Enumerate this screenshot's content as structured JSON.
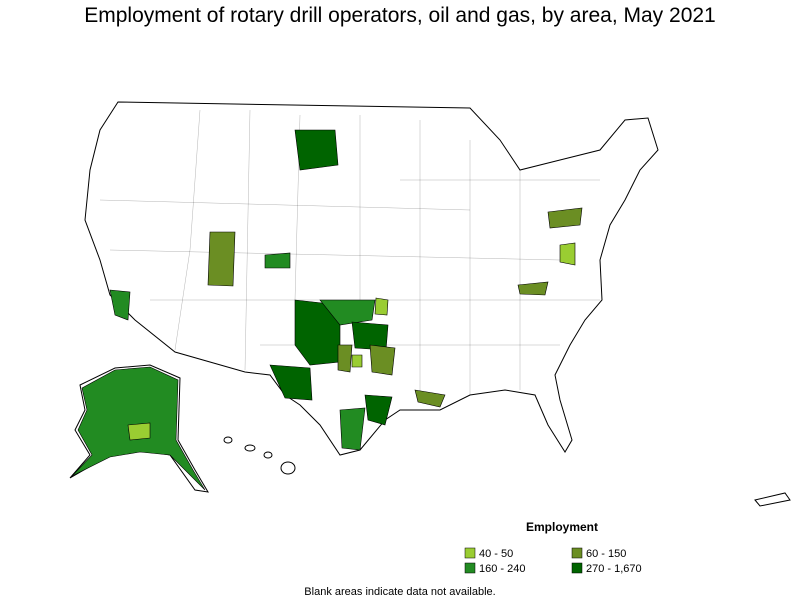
{
  "title": "Employment of rotary drill operators, oil and gas, by area, May 2021",
  "legend": {
    "title": "Employment",
    "items": [
      {
        "label": "40 - 50",
        "color": "#9acd32"
      },
      {
        "label": "60 - 150",
        "color": "#6b8e23"
      },
      {
        "label": "160 - 240",
        "color": "#228b22"
      },
      {
        "label": "270 - 1,670",
        "color": "#006400"
      }
    ]
  },
  "footnote": "Blank areas indicate data not available."
}
